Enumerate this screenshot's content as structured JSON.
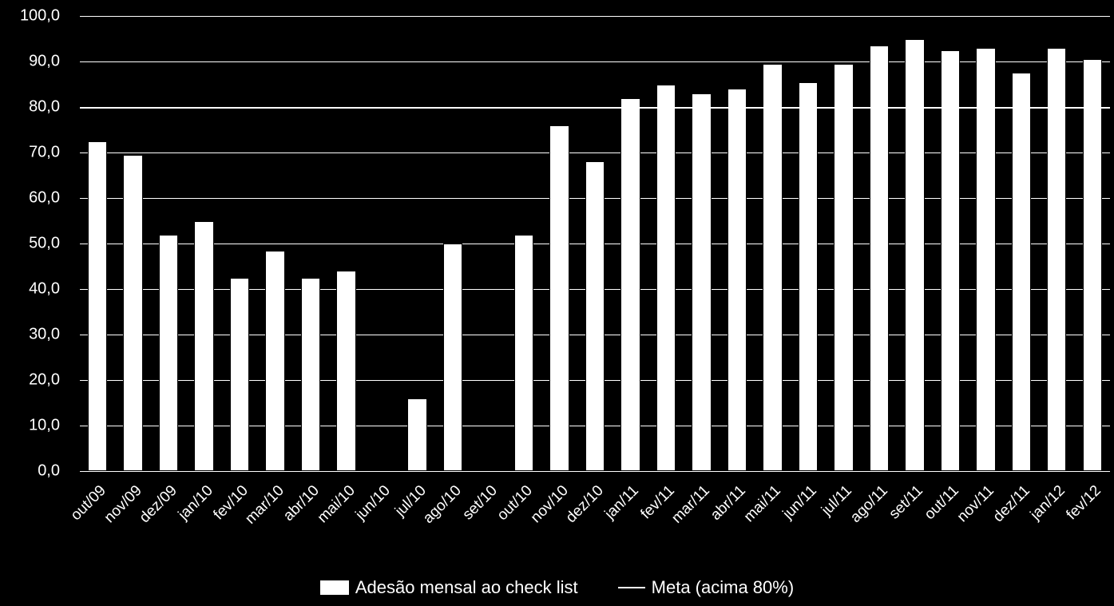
{
  "chart": {
    "type": "bar",
    "background_color": "#000000",
    "grid_color": "#ffffff",
    "bar_color": "#ffffff",
    "meta_line_color": "#ffffff",
    "text_color": "#ffffff",
    "categories": [
      "out/09",
      "nov/09",
      "dez/09",
      "jan/10",
      "fev/10",
      "mar/10",
      "abr/10",
      "mai/10",
      "jun/10",
      "jul/10",
      "ago/10",
      "set/10",
      "out/10",
      "nov/10",
      "dez/10",
      "jan/11",
      "fev/11",
      "mar/11",
      "abr/11",
      "mai/11",
      "jun/11",
      "jul/11",
      "ago/11",
      "set/11",
      "out/11",
      "nov/11",
      "dez/11",
      "jan/12",
      "fev/12"
    ],
    "values": [
      72.5,
      69.5,
      52.0,
      55.0,
      42.5,
      48.5,
      42.5,
      44.0,
      0.0,
      16.0,
      50.0,
      0.0,
      52.0,
      76.0,
      68.0,
      82.0,
      85.0,
      83.0,
      84.0,
      89.5,
      85.5,
      89.5,
      93.5,
      95.0,
      92.5,
      93.0,
      87.5,
      93.0,
      90.5
    ],
    "ylim": [
      0,
      100
    ],
    "ytick_step": 10,
    "ytick_labels": [
      "0,0",
      "10,0",
      "20,0",
      "30,0",
      "40,0",
      "50,0",
      "60,0",
      "70,0",
      "80,0",
      "90,0",
      "100,0"
    ],
    "meta_value": 80,
    "bar_width_ratio": 0.55,
    "legend": {
      "bar_label": "Adesão mensal ao check list",
      "line_label": "Meta (acima 80%)"
    },
    "axis_fontsize": 20,
    "legend_fontsize": 22,
    "xlabel_fontsize": 19
  }
}
